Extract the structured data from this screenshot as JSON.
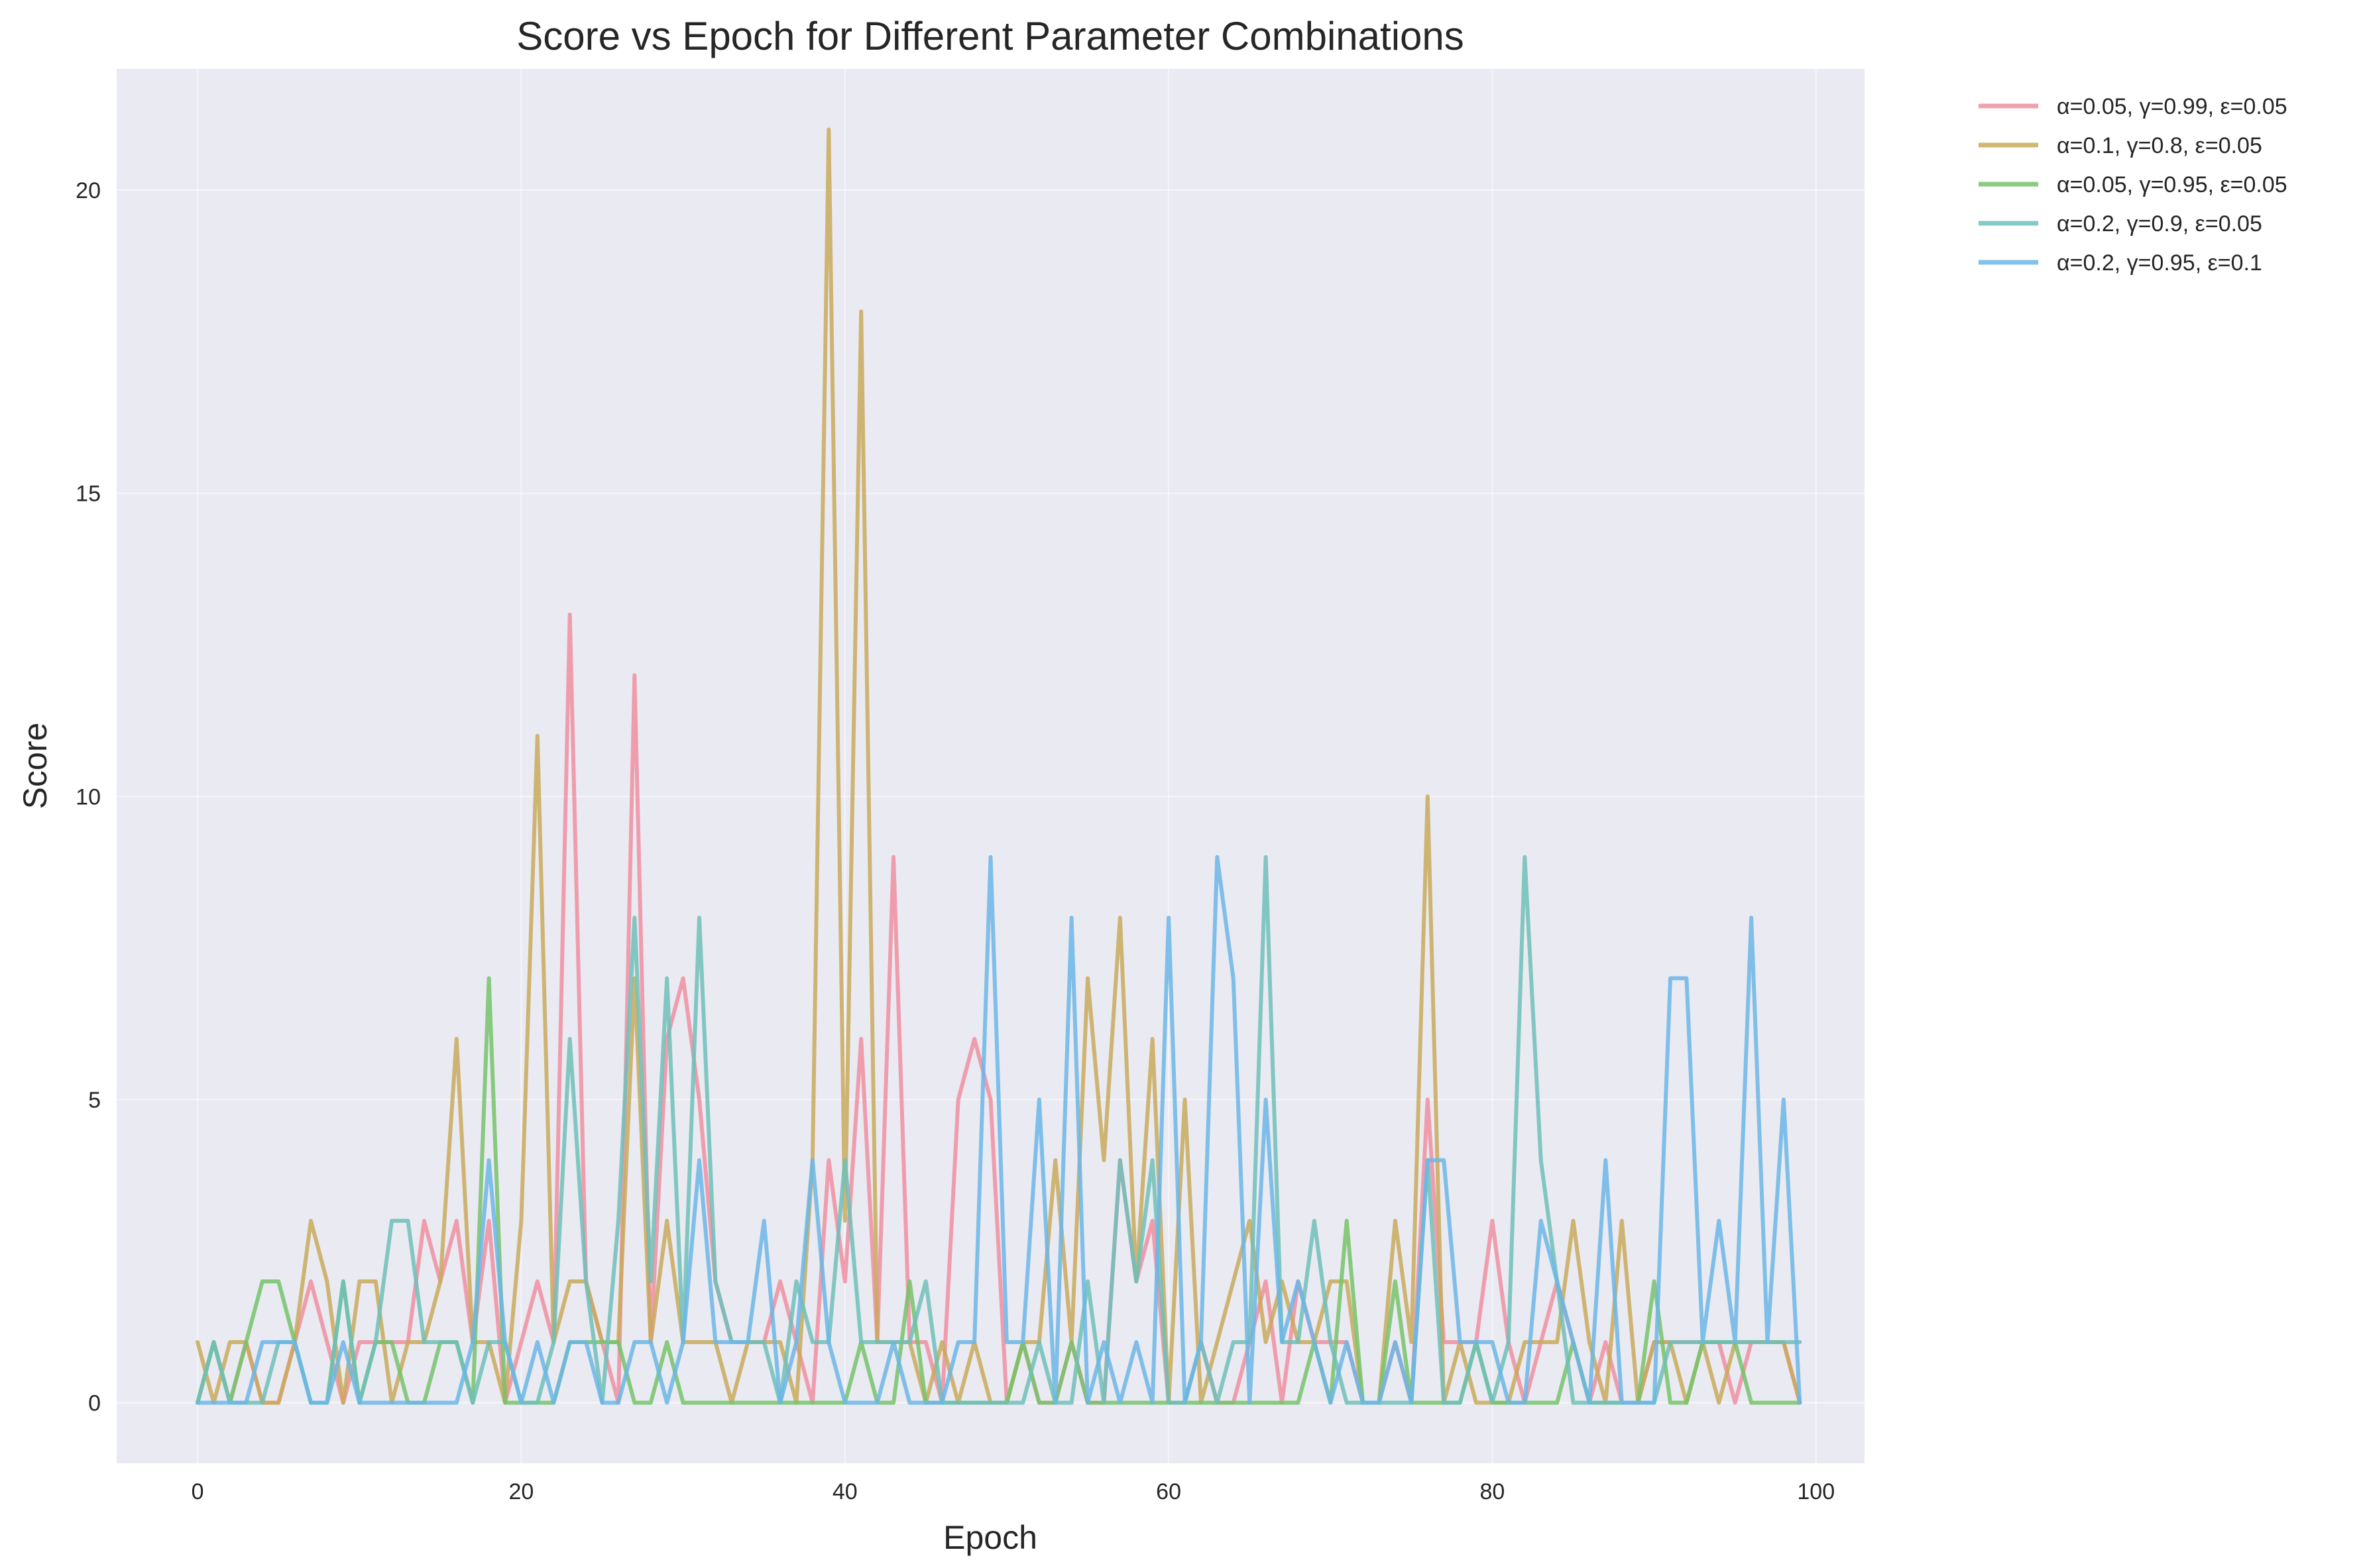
{
  "chart_data": {
    "type": "line",
    "title": "Score vs Epoch for Different Parameter Combinations",
    "xlabel": "Epoch",
    "ylabel": "Score",
    "xlim": [
      -5,
      103
    ],
    "ylim": [
      -1,
      22
    ],
    "xticks": [
      0,
      20,
      40,
      60,
      80,
      100
    ],
    "yticks": [
      0,
      5,
      10,
      15,
      20
    ],
    "grid": true,
    "legend_position": "outside-top-right",
    "background_color": "#eaeaf2",
    "series": [
      {
        "name": "α=0.05, γ=0.99, ε=0.05",
        "color": "#f08fa1",
        "values": [
          0,
          1,
          0,
          1,
          0,
          0,
          1,
          2,
          1,
          0,
          1,
          1,
          1,
          1,
          3,
          2,
          3,
          1,
          3,
          0,
          1,
          2,
          1,
          13,
          2,
          1,
          0,
          12,
          1,
          6,
          7,
          5,
          2,
          1,
          1,
          1,
          2,
          1,
          0,
          4,
          2,
          6,
          1,
          9,
          1,
          1,
          0,
          5,
          6,
          5,
          0,
          1,
          0,
          0,
          1,
          0,
          0,
          4,
          2,
          3,
          0,
          0,
          1,
          0,
          0,
          1,
          2,
          0,
          2,
          1,
          1,
          1,
          0,
          0,
          1,
          0,
          5,
          1,
          1,
          1,
          3,
          1,
          0,
          1,
          2,
          1,
          0,
          1,
          0,
          0,
          1,
          1,
          1,
          1,
          1,
          0,
          1,
          1,
          1,
          0
        ]
      },
      {
        "name": "α=0.1, γ=0.8, ε=0.05",
        "color": "#c9aa5c",
        "values": [
          1,
          0,
          1,
          1,
          0,
          0,
          1,
          3,
          2,
          0,
          2,
          2,
          0,
          1,
          1,
          2,
          6,
          1,
          1,
          0,
          3,
          11,
          1,
          2,
          2,
          1,
          1,
          7,
          1,
          3,
          1,
          1,
          1,
          0,
          1,
          1,
          1,
          0,
          4,
          21,
          3,
          18,
          1,
          1,
          1,
          0,
          1,
          0,
          1,
          0,
          0,
          1,
          1,
          4,
          1,
          7,
          4,
          8,
          2,
          6,
          0,
          5,
          0,
          1,
          2,
          3,
          1,
          2,
          1,
          1,
          2,
          2,
          0,
          0,
          3,
          1,
          10,
          0,
          1,
          0,
          0,
          0,
          1,
          1,
          1,
          3,
          1,
          0,
          3,
          0,
          1,
          1,
          0,
          1,
          0,
          1,
          1,
          1,
          1,
          0
        ]
      },
      {
        "name": "α=0.05, γ=0.95, ε=0.05",
        "color": "#76c36a",
        "values": [
          0,
          1,
          0,
          1,
          2,
          2,
          1,
          0,
          0,
          2,
          0,
          1,
          1,
          0,
          0,
          1,
          1,
          0,
          7,
          0,
          0,
          0,
          0,
          1,
          1,
          1,
          1,
          0,
          0,
          1,
          0,
          0,
          0,
          0,
          0,
          0,
          0,
          0,
          0,
          0,
          0,
          1,
          0,
          0,
          2,
          0,
          0,
          0,
          0,
          0,
          0,
          1,
          0,
          0,
          1,
          0,
          0,
          0,
          0,
          0,
          0,
          0,
          0,
          0,
          0,
          0,
          0,
          0,
          0,
          1,
          0,
          3,
          0,
          0,
          2,
          0,
          0,
          0,
          0,
          1,
          0,
          0,
          0,
          0,
          0,
          1,
          0,
          0,
          0,
          0,
          2,
          0,
          0,
          1,
          1,
          1,
          0,
          0,
          0,
          0
        ]
      },
      {
        "name": "α=0.2, γ=0.9, ε=0.05",
        "color": "#6ec0b8",
        "values": [
          0,
          1,
          0,
          0,
          0,
          1,
          1,
          0,
          0,
          2,
          0,
          1,
          3,
          3,
          1,
          1,
          1,
          0,
          1,
          1,
          0,
          0,
          1,
          6,
          2,
          0,
          3,
          8,
          2,
          7,
          1,
          8,
          2,
          1,
          1,
          1,
          0,
          2,
          1,
          1,
          4,
          1,
          1,
          1,
          1,
          2,
          0,
          0,
          0,
          0,
          0,
          0,
          1,
          0,
          0,
          2,
          0,
          4,
          2,
          4,
          0,
          0,
          1,
          0,
          1,
          1,
          9,
          1,
          1,
          3,
          1,
          0,
          0,
          0,
          0,
          0,
          4,
          0,
          0,
          1,
          0,
          1,
          9,
          4,
          2,
          0,
          0,
          0,
          0,
          0,
          0,
          1,
          1,
          1,
          1,
          1,
          1,
          1,
          1,
          1
        ]
      },
      {
        "name": "α=0.2, γ=0.95, ε=0.1",
        "color": "#6bb6e6",
        "values": [
          0,
          0,
          0,
          0,
          1,
          1,
          1,
          0,
          0,
          1,
          0,
          0,
          0,
          0,
          0,
          0,
          0,
          1,
          4,
          1,
          0,
          1,
          0,
          1,
          1,
          0,
          0,
          1,
          1,
          0,
          1,
          4,
          1,
          1,
          1,
          3,
          0,
          1,
          4,
          1,
          0,
          0,
          0,
          1,
          0,
          0,
          0,
          1,
          1,
          9,
          1,
          1,
          5,
          0,
          8,
          0,
          1,
          0,
          1,
          0,
          8,
          0,
          1,
          9,
          7,
          0,
          5,
          1,
          2,
          1,
          0,
          1,
          0,
          0,
          1,
          0,
          4,
          4,
          1,
          1,
          1,
          0,
          0,
          3,
          2,
          1,
          0,
          4,
          0,
          0,
          0,
          7,
          7,
          1,
          3,
          1,
          8,
          1,
          5,
          0
        ]
      }
    ]
  }
}
